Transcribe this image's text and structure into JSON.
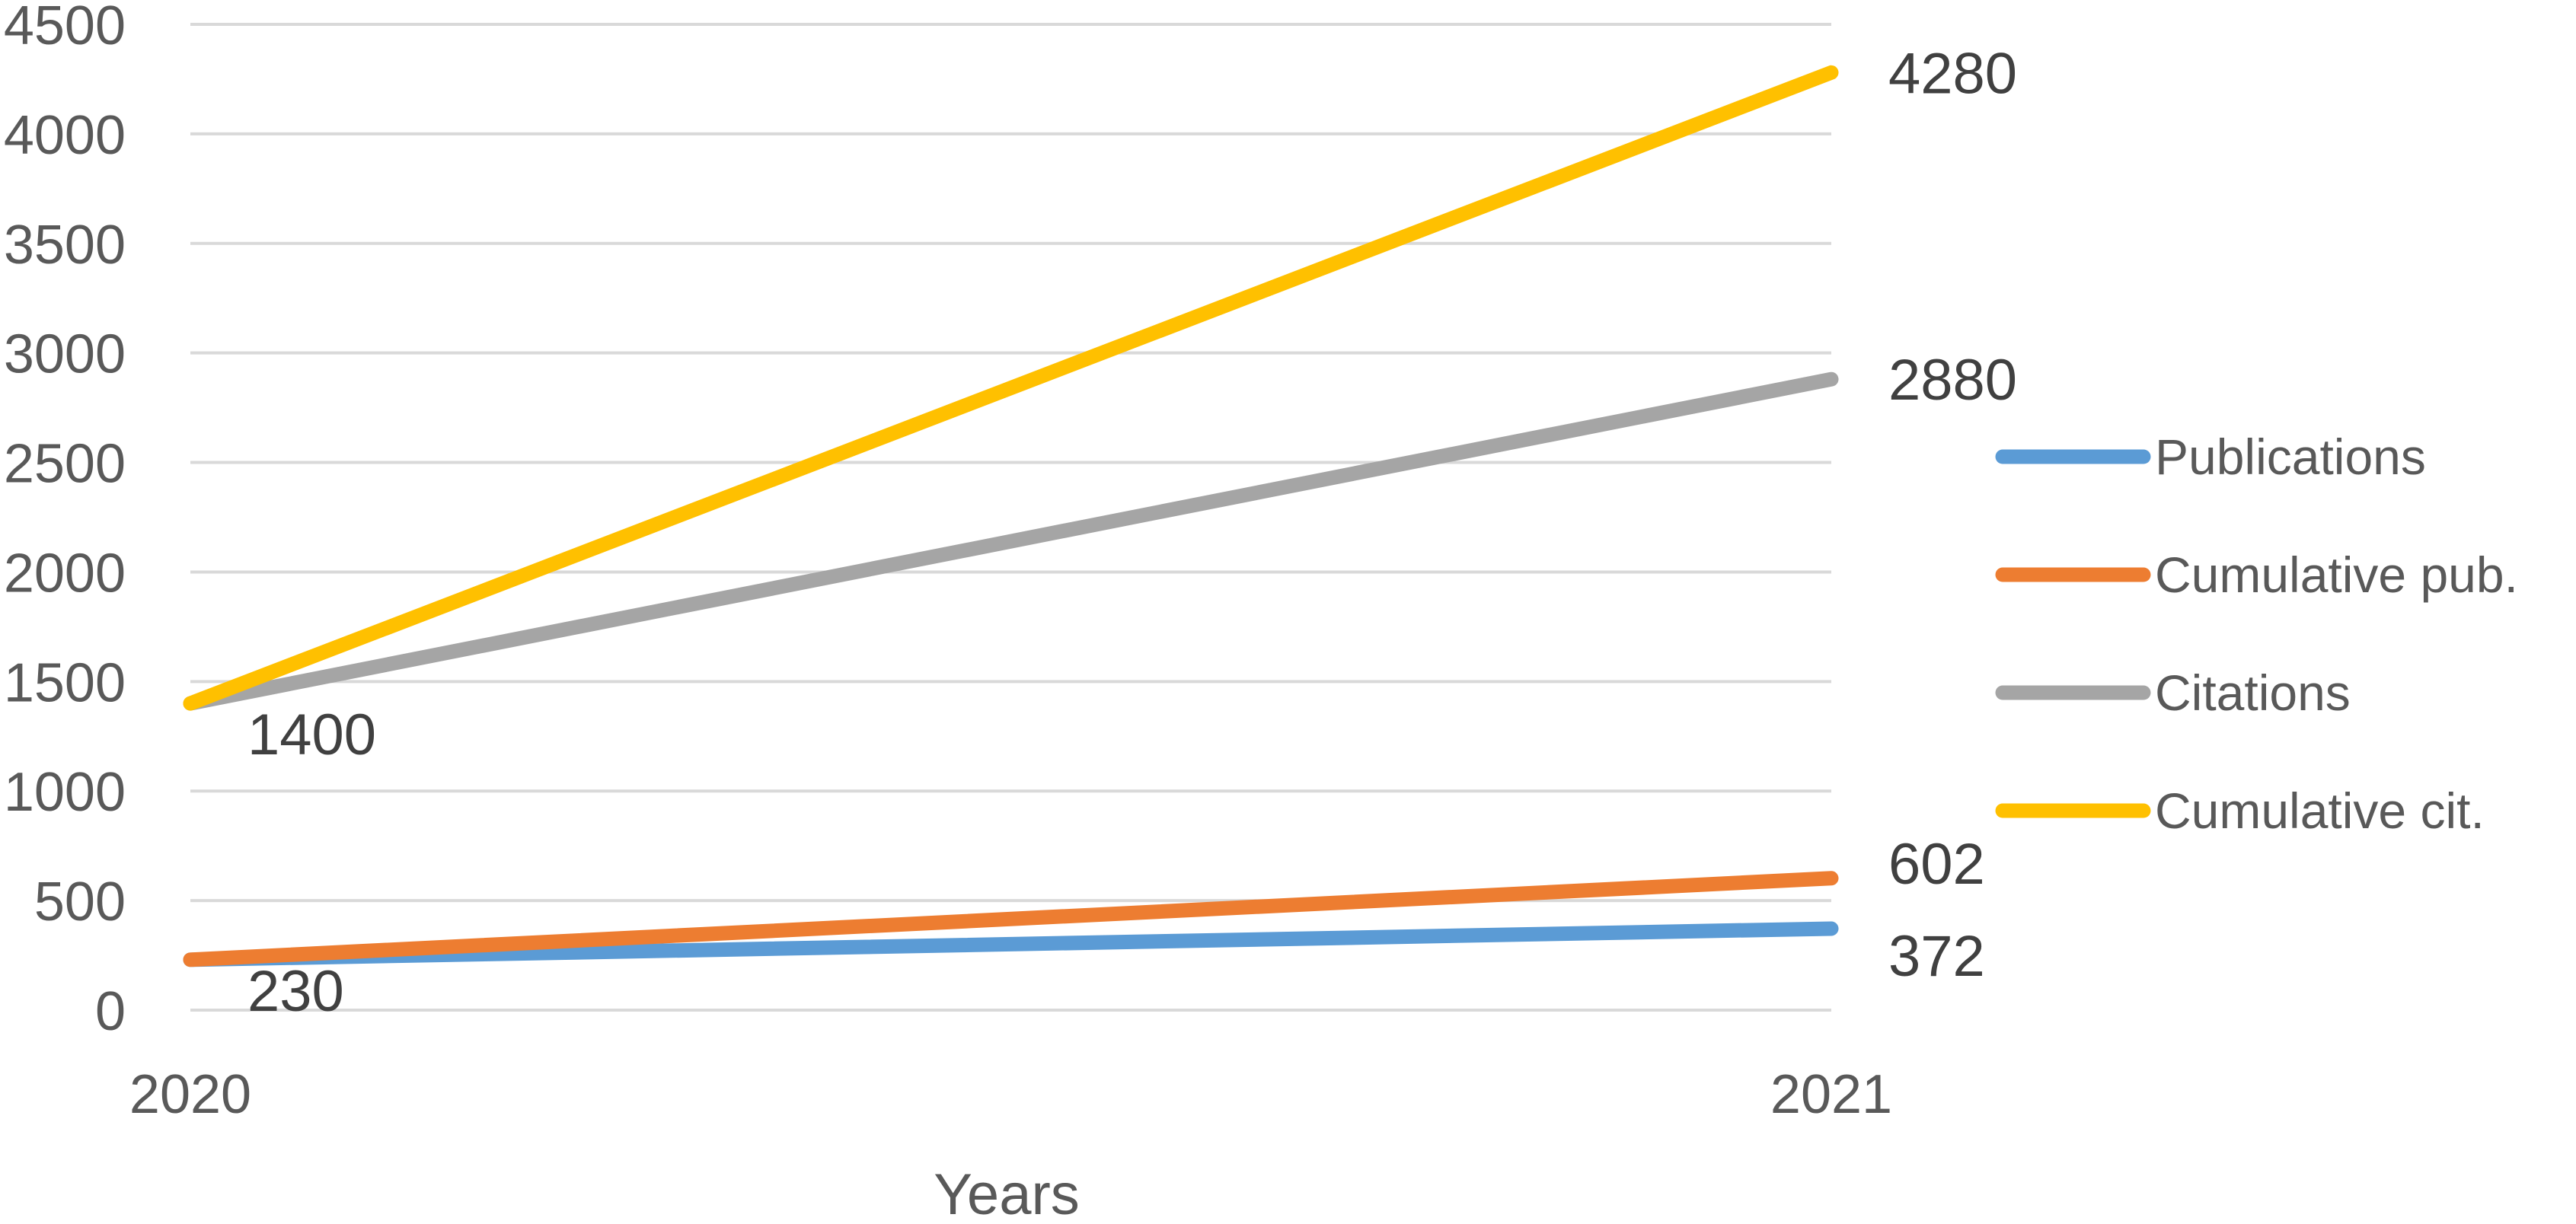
{
  "chart_data": {
    "type": "line",
    "x": [
      "2020",
      "2021"
    ],
    "xlabel": "Years",
    "ylabel": "",
    "ylim": [
      0,
      4500
    ],
    "y_ticks": [
      "0",
      "500",
      "1000",
      "1500",
      "2000",
      "2500",
      "3000",
      "3500",
      "4000",
      "4500"
    ],
    "grid": "horizontal",
    "legend_position": "right",
    "series": [
      {
        "name": "Publications",
        "values": [
          230,
          372
        ],
        "color": "#5b9bd5",
        "end_labels": [
          "",
          "372"
        ]
      },
      {
        "name": "Cumulative pub.",
        "values": [
          230,
          602
        ],
        "color": "#ed7d31",
        "end_labels": [
          "230",
          "602"
        ]
      },
      {
        "name": "Citations",
        "values": [
          1400,
          2880
        ],
        "color": "#a5a5a5",
        "end_labels": [
          "",
          "2880"
        ]
      },
      {
        "name": "Cumulative cit.",
        "values": [
          1400,
          4280
        ],
        "color": "#ffc000",
        "end_labels": [
          "1400",
          "4280"
        ]
      }
    ]
  }
}
